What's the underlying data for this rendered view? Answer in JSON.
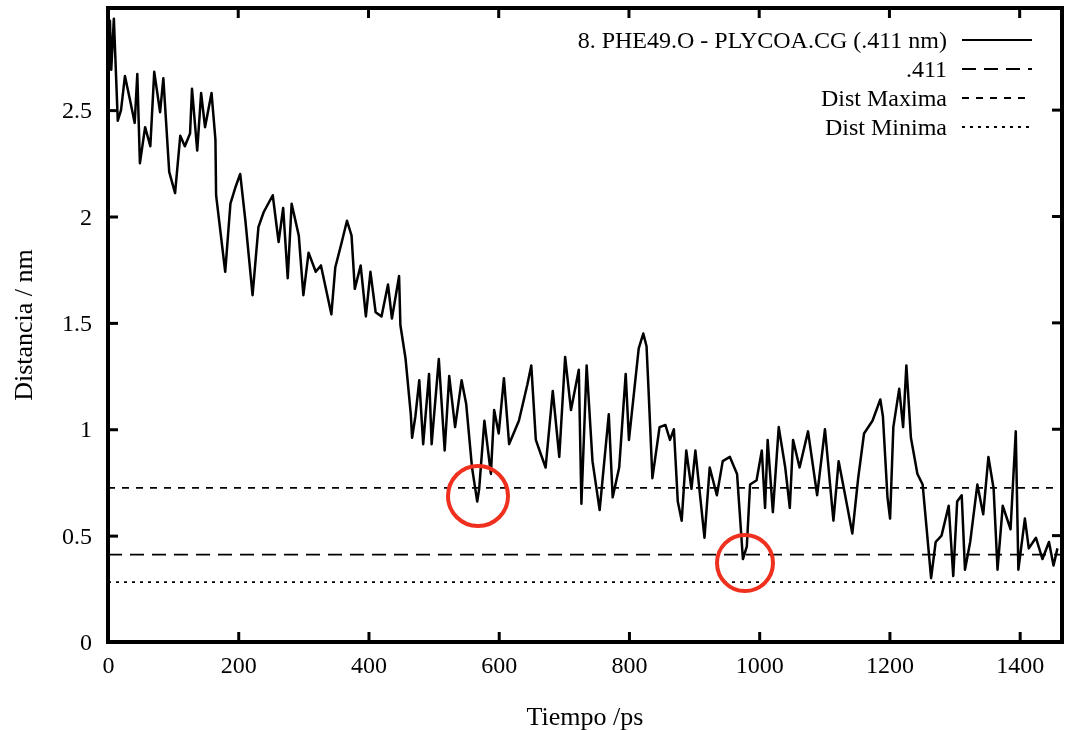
{
  "chart_data": {
    "type": "line",
    "xlabel": "Tiempo /ps",
    "ylabel": "Distancia / nm",
    "xlim": [
      0,
      1465
    ],
    "ylim": [
      0,
      2.98
    ],
    "xticks": [
      0,
      200,
      400,
      600,
      800,
      1000,
      1200,
      1400
    ],
    "yticks": [
      0,
      0.5,
      1,
      1.5,
      2,
      2.5
    ],
    "grid": false,
    "legend": "top right",
    "series": [
      {
        "name": "8. PHE49.O  - PLYCOA.CG (.411 nm)",
        "color": "#000000",
        "line_style": "solid",
        "x": [
          0,
          3,
          5,
          9,
          15,
          20,
          26,
          35,
          41,
          45,
          49,
          57,
          65,
          71,
          80,
          85,
          94,
          103,
          111,
          118,
          126,
          129,
          137,
          143,
          149,
          159,
          165,
          166,
          180,
          188,
          196,
          203,
          211,
          222,
          231,
          239,
          253,
          262,
          269,
          276,
          282,
          293,
          300,
          308,
          319,
          327,
          343,
          349,
          359,
          367,
          374,
          379,
          388,
          396,
          403,
          411,
          420,
          430,
          436,
          447,
          449,
          451,
          457,
          465,
          467,
          472,
          478,
          484,
          493,
          497,
          508,
          517,
          524,
          533,
          543,
          550,
          559,
          567,
          570,
          578,
          588,
          593,
          600,
          608,
          616,
          631,
          644,
          650,
          657,
          665,
          672,
          683,
          693,
          702,
          711,
          723,
          727,
          735,
          744,
          755,
          769,
          775,
          785,
          795,
          800,
          815,
          822,
          827,
          830,
          836,
          847,
          856,
          863,
          869,
          875,
          881,
          888,
          896,
          902,
          916,
          924,
          935,
          944,
          955,
          966,
          975,
          981,
          986,
          996,
          1004,
          1009,
          1013,
          1021,
          1030,
          1040,
          1047,
          1052,
          1062,
          1075,
          1089,
          1101,
          1114,
          1122,
          1132,
          1143,
          1152,
          1161,
          1174,
          1186,
          1190,
          1197,
          1201,
          1206,
          1215,
          1221,
          1226,
          1233,
          1243,
          1251,
          1264,
          1271,
          1280,
          1291,
          1298,
          1304,
          1311,
          1316,
          1324,
          1335,
          1344,
          1352,
          1360,
          1366,
          1374,
          1386,
          1394,
          1398,
          1408,
          1414,
          1425,
          1435,
          1445,
          1452,
          1458
        ],
        "values": [
          2.85,
          2.92,
          2.69,
          2.93,
          2.45,
          2.5,
          2.66,
          2.53,
          2.44,
          2.67,
          2.25,
          2.42,
          2.33,
          2.68,
          2.49,
          2.65,
          2.21,
          2.11,
          2.38,
          2.33,
          2.39,
          2.6,
          2.31,
          2.58,
          2.42,
          2.58,
          2.36,
          2.1,
          1.74,
          2.06,
          2.14,
          2.2,
          1.98,
          1.63,
          1.95,
          2.02,
          2.1,
          1.88,
          2.04,
          1.71,
          2.06,
          1.91,
          1.63,
          1.83,
          1.74,
          1.77,
          1.54,
          1.76,
          1.88,
          1.98,
          1.91,
          1.66,
          1.77,
          1.53,
          1.74,
          1.55,
          1.53,
          1.68,
          1.52,
          1.72,
          1.49,
          1.45,
          1.33,
          1.07,
          0.96,
          1.06,
          1.23,
          0.93,
          1.26,
          0.93,
          1.33,
          0.9,
          1.25,
          1.01,
          1.23,
          1.12,
          0.82,
          0.66,
          0.72,
          1.04,
          0.79,
          1.09,
          0.98,
          1.24,
          0.93,
          1.04,
          1.21,
          1.3,
          0.95,
          0.88,
          0.82,
          1.18,
          0.87,
          1.34,
          1.09,
          1.28,
          0.65,
          1.3,
          0.85,
          0.62,
          1.07,
          0.68,
          0.82,
          1.26,
          0.95,
          1.38,
          1.45,
          1.39,
          1.19,
          0.77,
          1.01,
          1.02,
          0.95,
          1.0,
          0.66,
          0.57,
          0.9,
          0.72,
          0.9,
          0.49,
          0.82,
          0.69,
          0.85,
          0.87,
          0.79,
          0.39,
          0.45,
          0.74,
          0.76,
          0.9,
          0.63,
          0.95,
          0.61,
          1.01,
          0.82,
          0.63,
          0.95,
          0.82,
          0.99,
          0.69,
          1.0,
          0.57,
          0.85,
          0.69,
          0.51,
          0.77,
          0.98,
          1.04,
          1.14,
          1.06,
          0.68,
          0.58,
          1.01,
          1.19,
          1.01,
          1.3,
          0.96,
          0.79,
          0.74,
          0.3,
          0.47,
          0.5,
          0.64,
          0.31,
          0.66,
          0.69,
          0.34,
          0.47,
          0.74,
          0.6,
          0.87,
          0.72,
          0.34,
          0.64,
          0.53,
          0.99,
          0.34,
          0.58,
          0.44,
          0.49,
          0.39,
          0.47,
          0.36,
          0.44
        ]
      },
      {
        "name": ".411",
        "color": "#000000",
        "line_style": "dashed",
        "x": [
          0,
          1465
        ],
        "values": [
          0.411,
          0.411
        ]
      },
      {
        "name": "Dist Maxima",
        "color": "#000000",
        "line_style": "dashed",
        "x": [
          0,
          1465
        ],
        "values": [
          0.724,
          0.724
        ]
      },
      {
        "name": "Dist Minima",
        "color": "#000000",
        "line_style": "dotted",
        "x": [
          0,
          1465
        ],
        "values": [
          0.281,
          0.281
        ]
      }
    ]
  }
}
